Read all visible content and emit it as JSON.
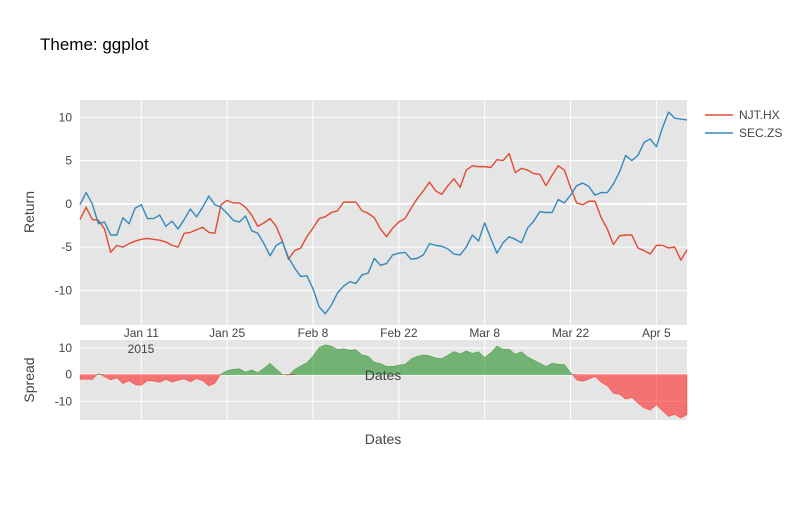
{
  "page_title": "Theme: ggplot",
  "chart_data": {
    "type": "line",
    "title": "Theme: ggplot",
    "colors": {
      "njt": "#e24a33",
      "sec": "#348abd",
      "panel_bg": "#e5e5e5",
      "grid": "#ffffff",
      "spread_positive": "#008000",
      "spread_negative": "#ff0000"
    },
    "grid": true,
    "legend": {
      "position": "top-right"
    },
    "x": {
      "label": "Dates",
      "start": "2015-01-01",
      "end": "2015-04-10",
      "tick_dates": [
        "2015-01-11",
        "2015-01-25",
        "2015-02-08",
        "2015-02-22",
        "2015-03-08",
        "2015-03-22",
        "2015-04-05"
      ],
      "tick_labels": [
        "Jan 11",
        "Jan 25",
        "Feb 8",
        "Feb 22",
        "Mar 8",
        "Mar 22",
        "Apr 5"
      ],
      "year_label": "2015"
    },
    "top_panel": {
      "ylabel": "Return",
      "ylim": [
        -14,
        12
      ],
      "yticks": [
        -10,
        -5,
        0,
        5,
        10
      ]
    },
    "bottom_panel": {
      "ylabel": "Spread",
      "xlabel": "Dates",
      "ylim": [
        -17,
        13
      ],
      "yticks": [
        -10,
        0,
        10
      ]
    },
    "series": [
      {
        "name": "NJT.HX",
        "color": "#e24a33",
        "values": [
          -1.8,
          -0.4,
          -1.8,
          -1.9,
          -2.9,
          -5.6,
          -4.8,
          -5.0,
          -4.6,
          -4.3,
          -4.1,
          -4.0,
          -4.1,
          -4.2,
          -4.4,
          -4.8,
          -5.0,
          -3.4,
          -3.3,
          -3.0,
          -2.7,
          -3.3,
          -3.4,
          -0.1,
          0.4,
          0.1,
          0.1,
          -0.4,
          -1.3,
          -2.6,
          -2.2,
          -1.7,
          -2.6,
          -4.3,
          -6.4,
          -5.4,
          -5.1,
          -3.8,
          -2.8,
          -1.7,
          -1.5,
          -1.0,
          -0.8,
          0.2,
          0.2,
          0.2,
          -0.8,
          -1.1,
          -1.6,
          -2.9,
          -3.8,
          -2.8,
          -2.1,
          -1.7,
          -0.5,
          0.6,
          1.5,
          2.5,
          1.5,
          1.1,
          2.1,
          2.9,
          1.9,
          3.9,
          4.4,
          4.3,
          4.3,
          4.2,
          5.1,
          5.0,
          5.8,
          3.6,
          4.1,
          3.9,
          3.5,
          3.4,
          2.1,
          3.3,
          4.4,
          3.9,
          1.9,
          0.1,
          -0.1,
          0.3,
          0.3,
          -1.6,
          -2.9,
          -4.7,
          -3.7,
          -3.6,
          -3.6,
          -5.1,
          -5.4,
          -5.8,
          -4.8,
          -4.8,
          -5.1,
          -5.0,
          -6.5,
          -5.3
        ]
      },
      {
        "name": "SEC.ZS",
        "color": "#348abd",
        "values": [
          -0.1,
          1.3,
          0.0,
          -2.3,
          -2.1,
          -3.6,
          -3.6,
          -1.6,
          -2.3,
          -0.5,
          -0.1,
          -1.7,
          -1.7,
          -1.3,
          -2.6,
          -2.0,
          -2.9,
          -1.8,
          -0.6,
          -1.5,
          -0.4,
          0.9,
          -0.1,
          -0.4,
          -1.1,
          -1.9,
          -2.1,
          -1.4,
          -3.1,
          -3.4,
          -4.6,
          -6.0,
          -4.8,
          -4.4,
          -6.2,
          -7.4,
          -8.4,
          -8.3,
          -9.8,
          -11.9,
          -12.7,
          -11.7,
          -10.3,
          -9.5,
          -9.0,
          -9.2,
          -8.2,
          -8.0,
          -6.3,
          -7.1,
          -6.9,
          -5.9,
          -5.7,
          -5.6,
          -6.4,
          -6.3,
          -5.9,
          -4.6,
          -4.8,
          -4.9,
          -5.2,
          -5.8,
          -5.9,
          -5.0,
          -3.6,
          -4.3,
          -2.2,
          -4.0,
          -5.7,
          -4.5,
          -3.8,
          -4.1,
          -4.5,
          -2.8,
          -2.0,
          -0.9,
          -1.0,
          -1.0,
          0.5,
          0.1,
          1.0,
          2.1,
          2.4,
          2.0,
          1.0,
          1.3,
          1.3,
          2.3,
          3.7,
          5.6,
          5.0,
          5.6,
          7.1,
          7.5,
          6.6,
          8.8,
          10.6,
          9.9,
          9.8,
          9.7
        ]
      }
    ]
  }
}
